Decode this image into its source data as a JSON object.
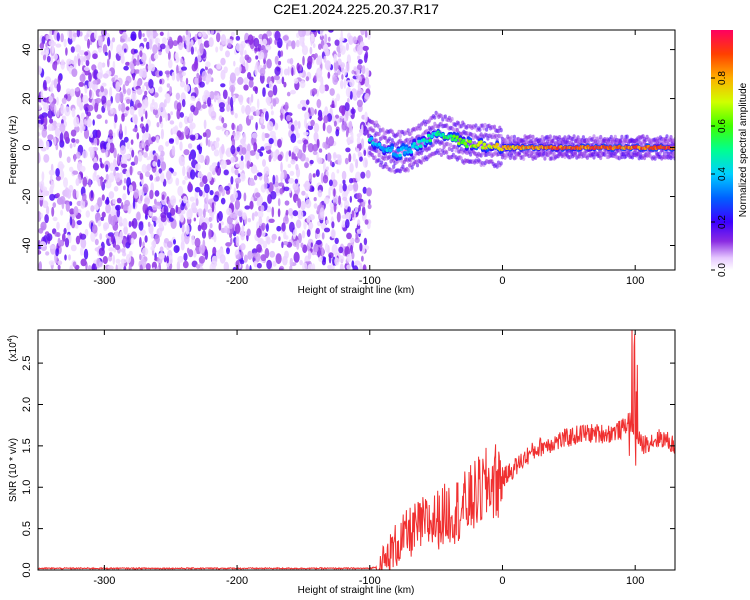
{
  "chart_data": [
    {
      "type": "heatmap",
      "title": "C2E1.2024.225.20.37.R17",
      "xlabel": "Height of straight line (km)",
      "ylabel": "Frequency (Hz)",
      "xlim": [
        -350,
        130
      ],
      "ylim": [
        -50,
        48
      ],
      "xticks": [
        "-300",
        "-200",
        "-100",
        "0",
        "100"
      ],
      "yticks": [
        "-40",
        "-20",
        "0",
        "20",
        "40"
      ],
      "colorbar": {
        "label": "Normalized spectral amplitude",
        "range": [
          0,
          1
        ],
        "ticks": [
          "0.0",
          "0.2",
          "0.4",
          "0.6",
          "0.8"
        ]
      },
      "noise_region_x": [
        -350,
        -100
      ],
      "ridge": {
        "x": [
          -100,
          -90,
          -80,
          -70,
          -60,
          -50,
          -40,
          -30,
          -20,
          -10,
          0,
          20,
          40,
          60,
          80,
          100,
          130
        ],
        "freq": [
          4,
          0,
          -2,
          -1,
          2,
          6,
          4,
          2,
          1,
          1,
          0,
          0,
          0,
          0,
          0,
          0,
          0
        ],
        "amplitude": [
          0.5,
          0.45,
          0.45,
          0.5,
          0.55,
          0.55,
          0.6,
          0.7,
          0.75,
          0.8,
          0.85,
          0.9,
          0.95,
          0.95,
          0.95,
          0.95,
          0.95
        ]
      }
    },
    {
      "type": "line",
      "xlabel": "Height of straight line (km)",
      "ylabel": "SNR (10 * v/v)",
      "yscale_label": "(x10",
      "yscale_exp": "4",
      "xlim": [
        -350,
        130
      ],
      "ylim": [
        0,
        2.9
      ],
      "xticks": [
        "-300",
        "-200",
        "-100",
        "0",
        "100"
      ],
      "yticks": [
        "0.0",
        "0.5",
        "1.0",
        "1.5",
        "2.0",
        "2.5"
      ],
      "color": "#f03030",
      "x": [
        -350,
        -300,
        -200,
        -100,
        -90,
        -80,
        -70,
        -60,
        -50,
        -40,
        -30,
        -20,
        -10,
        0,
        10,
        20,
        30,
        40,
        50,
        60,
        70,
        80,
        90,
        95,
        100,
        105,
        110,
        120,
        130
      ],
      "y": [
        0.02,
        0.02,
        0.02,
        0.02,
        0.05,
        0.3,
        0.45,
        0.55,
        0.6,
        0.7,
        0.75,
        0.9,
        1.05,
        1.1,
        1.25,
        1.4,
        1.5,
        1.55,
        1.6,
        1.65,
        1.65,
        1.65,
        1.7,
        1.8,
        1.7,
        1.5,
        1.55,
        1.6,
        1.5
      ]
    }
  ]
}
